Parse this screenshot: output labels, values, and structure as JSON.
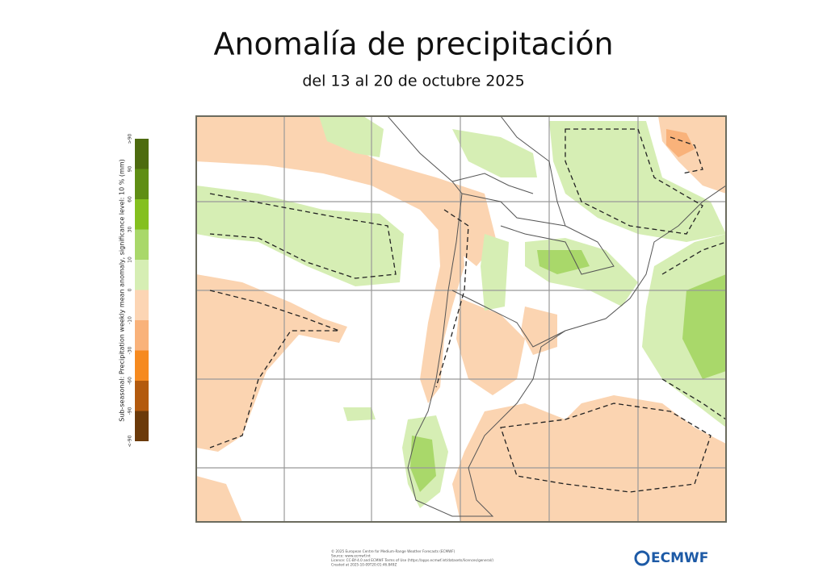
{
  "header": {
    "title": "Anomalía de precipitación",
    "subtitle": "del 13 al 20 de octubre 2025"
  },
  "legend": {
    "label": "Sub-seasonal: Precipitation weekly mean anomaly, significance level: 10 % (mm)",
    "ticks": [
      ">90",
      "90",
      "60",
      "30",
      "10",
      "0",
      "-10",
      "-30",
      "-60",
      "-90",
      "<-90"
    ],
    "colors": [
      "#4d6b0f",
      "#5f8e14",
      "#84c01f",
      "#a9d86a",
      "#d6eeb4",
      "#fcd5b4",
      "#f9b27a",
      "#f68a1f",
      "#b35a0e",
      "#6b3a0a"
    ]
  },
  "footer": {
    "lines": [
      "© 2025 European Centre for Medium-Range Weather Forecasts (ECMWF)",
      "Source: www.ecmwf.int",
      "Licence: CC-BY-4.0 and ECMWF Terms of Use (https://apps.ecmwf.int/datasets/licences/general/)",
      "Created at 2025-10-09T20:01:46.849Z"
    ],
    "logo": "ECMWF"
  }
}
